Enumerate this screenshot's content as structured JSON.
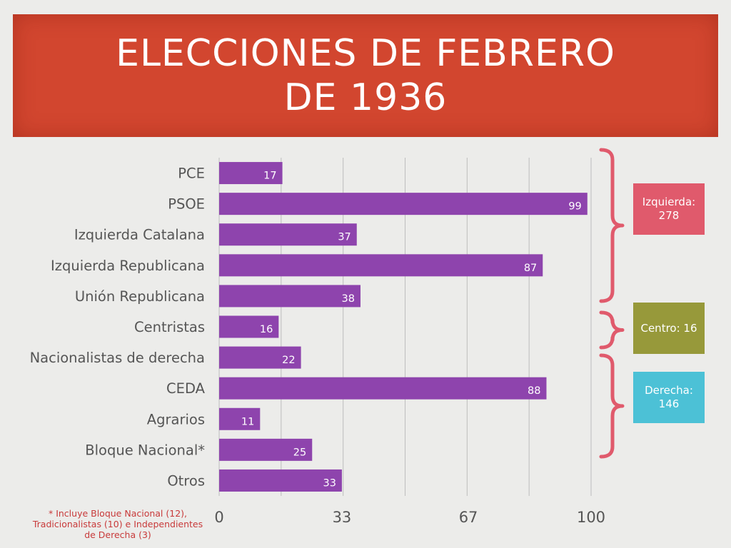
{
  "header": {
    "title_line1": "ELECCIONES DE FEBRERO",
    "title_line2": "DE 1936"
  },
  "chart_data": {
    "type": "bar",
    "orientation": "horizontal",
    "categories": [
      "PCE",
      "PSOE",
      "Izquierda Catalana",
      "Izquierda Republicana",
      "Unión Republicana",
      "Centristas",
      "Nacionalistas de derecha",
      "CEDA",
      "Agrarios",
      "Bloque Nacional*",
      "Otros"
    ],
    "values": [
      17,
      99,
      37,
      87,
      38,
      16,
      22,
      88,
      11,
      25,
      33
    ],
    "x_ticks": [
      0,
      33,
      67,
      100
    ],
    "xlim": [
      0,
      100
    ],
    "grid": "vertical",
    "bar_color": "#8e44ad",
    "title": "ELECCIONES DE FEBRERO DE 1936"
  },
  "groups": [
    {
      "label": "Izquierda: 278",
      "color": "#e05a6c"
    },
    {
      "label": "Centro: 16",
      "color": "#97993a"
    },
    {
      "label": "Derecha: 146",
      "color": "#4cc1d6"
    }
  ],
  "brace_color": "#e05a6c",
  "footnote": "* Incluye Bloque Nacional (12), Tradicionalistas (10) e Independientes de Derecha (3)"
}
